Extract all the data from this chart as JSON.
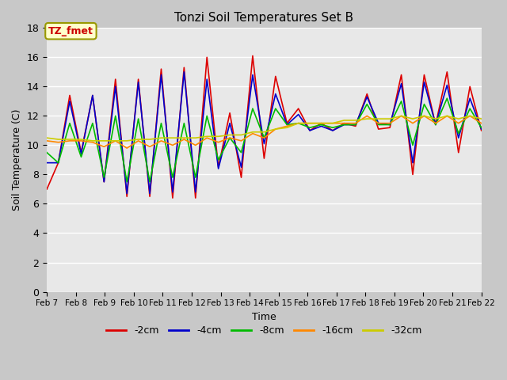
{
  "title": "Tonzi Soil Temperatures Set B",
  "xlabel": "Time",
  "ylabel": "Soil Temperature (C)",
  "annotation_text": "TZ_fmet",
  "annotation_color": "#cc0000",
  "annotation_bg": "#ffffcc",
  "annotation_border": "#999900",
  "ylim": [
    0,
    18
  ],
  "yticks": [
    0,
    2,
    4,
    6,
    8,
    10,
    12,
    14,
    16,
    18
  ],
  "series_colors": [
    "#dd0000",
    "#0000cc",
    "#00bb00",
    "#ff8800",
    "#cccc00"
  ],
  "series_labels": [
    "-2cm",
    "-4cm",
    "-8cm",
    "-16cm",
    "-32cm"
  ],
  "fig_bg": "#c8c8c8",
  "plot_bg": "#e8e8e8",
  "grid_color": "#ffffff",
  "xtick_labels": [
    "Feb 7",
    "Feb 8",
    "Feb 9",
    "Feb 10",
    "Feb 11",
    "Feb 12",
    "Feb 13",
    "Feb 14",
    "Feb 15",
    "Feb 16",
    "Feb 17",
    "Feb 18",
    "Feb 19",
    "Feb 20",
    "Feb 21",
    "Feb 22"
  ],
  "series_minus2": [
    7.0,
    8.8,
    13.4,
    9.5,
    13.4,
    7.5,
    14.5,
    6.5,
    14.5,
    6.5,
    15.2,
    6.4,
    15.3,
    6.4,
    16.0,
    8.5,
    12.2,
    7.8,
    16.1,
    9.1,
    14.7,
    11.5,
    12.5,
    11.0,
    11.5,
    11.0,
    11.5,
    11.3,
    13.5,
    11.1,
    11.2,
    14.8,
    8.0,
    14.8,
    11.4,
    15.0,
    9.5,
    14.0,
    11.0
  ],
  "series_minus4": [
    8.8,
    8.8,
    13.0,
    9.4,
    13.4,
    7.5,
    14.0,
    6.7,
    14.3,
    6.7,
    14.8,
    6.8,
    15.0,
    6.8,
    14.5,
    8.4,
    11.5,
    8.5,
    14.8,
    10.1,
    13.5,
    11.4,
    12.1,
    11.0,
    11.3,
    11.0,
    11.4,
    11.4,
    13.3,
    11.5,
    11.4,
    14.2,
    8.8,
    14.3,
    11.4,
    14.1,
    10.5,
    13.2,
    11.1
  ],
  "series_minus8": [
    9.5,
    8.8,
    11.5,
    9.2,
    11.5,
    7.8,
    12.0,
    7.5,
    11.8,
    7.5,
    11.5,
    7.8,
    11.5,
    7.8,
    12.0,
    9.0,
    10.5,
    9.5,
    12.5,
    10.5,
    12.5,
    11.4,
    11.5,
    11.2,
    11.4,
    11.2,
    11.4,
    11.4,
    12.8,
    11.4,
    11.4,
    13.0,
    10.0,
    12.8,
    11.4,
    13.2,
    10.8,
    12.5,
    11.2
  ],
  "series_minus16": [
    10.3,
    10.2,
    10.3,
    10.3,
    10.2,
    9.9,
    10.3,
    9.8,
    10.3,
    9.9,
    10.3,
    10.0,
    10.4,
    10.0,
    10.5,
    10.2,
    10.5,
    10.3,
    10.8,
    10.5,
    11.1,
    11.3,
    11.5,
    11.5,
    11.5,
    11.5,
    11.5,
    11.5,
    12.0,
    11.5,
    11.5,
    12.0,
    11.5,
    12.0,
    11.5,
    12.0,
    11.5,
    12.0,
    11.5
  ],
  "series_minus32": [
    10.5,
    10.4,
    10.4,
    10.4,
    10.3,
    10.3,
    10.3,
    10.3,
    10.4,
    10.4,
    10.5,
    10.5,
    10.5,
    10.5,
    10.6,
    10.6,
    10.7,
    10.7,
    10.9,
    10.9,
    11.1,
    11.2,
    11.5,
    11.5,
    11.5,
    11.5,
    11.7,
    11.7,
    11.8,
    11.8,
    11.8,
    12.0,
    11.8,
    12.0,
    11.8,
    12.0,
    11.8,
    12.0,
    11.8
  ]
}
